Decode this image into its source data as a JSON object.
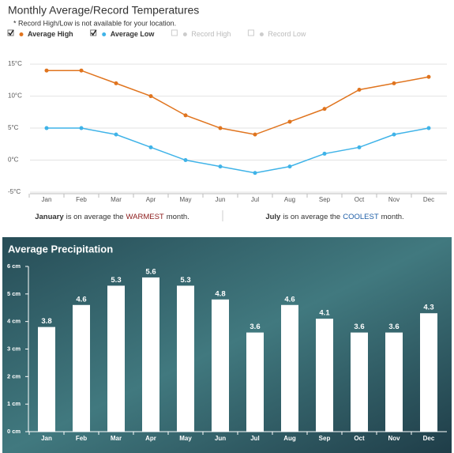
{
  "chart_data": [
    {
      "type": "line",
      "title": "Monthly Average/Record Temperatures",
      "note": "* Record High/Low is not available for your location.",
      "categories": [
        "Jan",
        "Feb",
        "Mar",
        "Apr",
        "May",
        "Jun",
        "Jul",
        "Aug",
        "Sep",
        "Oct",
        "Nov",
        "Dec"
      ],
      "series": [
        {
          "name": "Average High",
          "color": "#e0741e",
          "values": [
            14,
            14,
            12,
            10,
            7,
            5,
            4,
            6,
            8,
            11,
            12,
            13
          ]
        },
        {
          "name": "Average Low",
          "color": "#3fb3e8",
          "values": [
            5,
            5,
            4,
            2,
            0,
            -1,
            -2,
            -1,
            1,
            2,
            4,
            5
          ]
        }
      ],
      "disabled_series": [
        {
          "name": "Record High"
        },
        {
          "name": "Record Low"
        }
      ],
      "ylim": [
        -5,
        16
      ],
      "yticks": [
        {
          "value": -5,
          "label": "-5°C"
        },
        {
          "value": 0,
          "label": "0°C"
        },
        {
          "value": 5,
          "label": "5°C"
        },
        {
          "value": 10,
          "label": "10°C"
        },
        {
          "value": 15,
          "label": "15°C"
        }
      ],
      "grid": true,
      "notes": [
        {
          "parts": [
            "January",
            "is on average the",
            "WARMEST",
            "month."
          ],
          "highlight_color": "#8b1a1a"
        },
        {
          "parts": [
            "July",
            "is on average the",
            "COOLEST",
            "month."
          ],
          "highlight_color": "#1f5fa8"
        }
      ]
    },
    {
      "type": "bar",
      "title": "Average Precipitation",
      "categories": [
        "Jan",
        "Feb",
        "Mar",
        "Apr",
        "May",
        "Jun",
        "Jul",
        "Aug",
        "Sep",
        "Oct",
        "Nov",
        "Dec"
      ],
      "values": [
        3.8,
        4.6,
        5.3,
        5.6,
        5.3,
        4.8,
        3.6,
        4.6,
        4.1,
        3.6,
        3.6,
        4.3
      ],
      "color": "#ffffff",
      "ylim": [
        0,
        6
      ],
      "yticks": [
        {
          "value": 0,
          "label": "0 cm"
        },
        {
          "value": 1,
          "label": "1 cm"
        },
        {
          "value": 2,
          "label": "2 cm"
        },
        {
          "value": 3,
          "label": "3 cm"
        },
        {
          "value": 4,
          "label": "4 cm"
        },
        {
          "value": 5,
          "label": "5 cm"
        },
        {
          "value": 6,
          "label": "6 cm"
        }
      ],
      "grid": false
    }
  ]
}
